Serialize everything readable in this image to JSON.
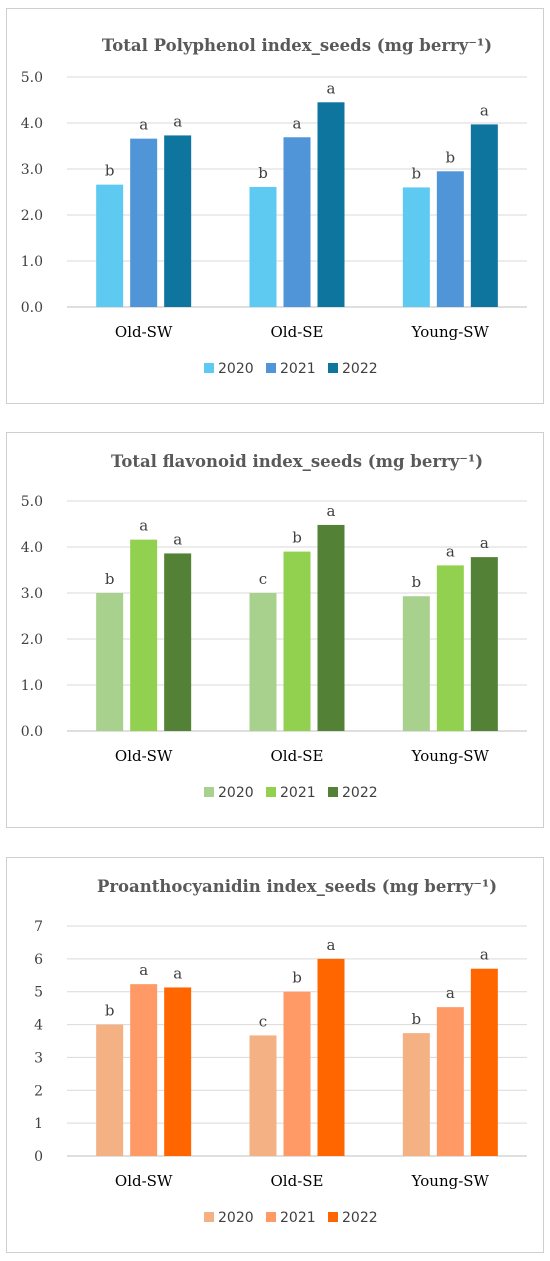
{
  "chart_data": [
    {
      "type": "bar",
      "title": "Total Polyphenol index_seeds (mg berry⁻¹)",
      "categories": [
        "Old-SW",
        "Old-SE",
        "Young-SW"
      ],
      "ylim": [
        0,
        5
      ],
      "yticks": [
        "0.0",
        "1.0",
        "2.0",
        "3.0",
        "4.0",
        "5.0"
      ],
      "grid": true,
      "legend_position": "bottom",
      "series": [
        {
          "name": "2020",
          "color": "#5ecaf1",
          "values": [
            2.66,
            2.61,
            2.6
          ],
          "labels": [
            "b",
            "b",
            "b"
          ]
        },
        {
          "name": "2021",
          "color": "#4f95d8",
          "values": [
            3.66,
            3.69,
            2.95
          ],
          "labels": [
            "a",
            "a",
            "b"
          ]
        },
        {
          "name": "2022",
          "color": "#0e769e",
          "values": [
            3.73,
            4.45,
            3.97
          ],
          "labels": [
            "a",
            "a",
            "a"
          ]
        }
      ]
    },
    {
      "type": "bar",
      "title": "Total flavonoid index_seeds (mg berry⁻¹)",
      "categories": [
        "Old-SW",
        "Old-SE",
        "Young-SW"
      ],
      "ylim": [
        0,
        5
      ],
      "yticks": [
        "0.0",
        "1.0",
        "2.0",
        "3.0",
        "4.0",
        "5.0"
      ],
      "grid": true,
      "legend_position": "bottom",
      "series": [
        {
          "name": "2020",
          "color": "#a8d18d",
          "values": [
            3.0,
            3.0,
            2.93
          ],
          "labels": [
            "b",
            "c",
            "b"
          ]
        },
        {
          "name": "2021",
          "color": "#92d050",
          "values": [
            4.16,
            3.9,
            3.6
          ],
          "labels": [
            "a",
            "b",
            "a"
          ]
        },
        {
          "name": "2022",
          "color": "#538135",
          "values": [
            3.86,
            4.48,
            3.78
          ],
          "labels": [
            "a",
            "a",
            "a"
          ]
        }
      ]
    },
    {
      "type": "bar",
      "title": "Proanthocyanidin index_seeds (mg berry⁻¹)",
      "categories": [
        "Old-SW",
        "Old-SE",
        "Young-SW"
      ],
      "ylim": [
        0,
        7
      ],
      "yticks": [
        "0",
        "1",
        "2",
        "3",
        "4",
        "5",
        "6",
        "7"
      ],
      "grid": true,
      "legend_position": "bottom",
      "series": [
        {
          "name": "2020",
          "color": "#f4b183",
          "values": [
            4.0,
            3.67,
            3.74
          ],
          "labels": [
            "b",
            "c",
            "b"
          ]
        },
        {
          "name": "2021",
          "color": "#ff9966",
          "values": [
            5.23,
            5.0,
            4.53
          ],
          "labels": [
            "a",
            "b",
            "a"
          ]
        },
        {
          "name": "2022",
          "color": "#ff6600",
          "values": [
            5.13,
            6.0,
            5.7
          ],
          "labels": [
            "a",
            "a",
            "a"
          ]
        }
      ]
    }
  ]
}
